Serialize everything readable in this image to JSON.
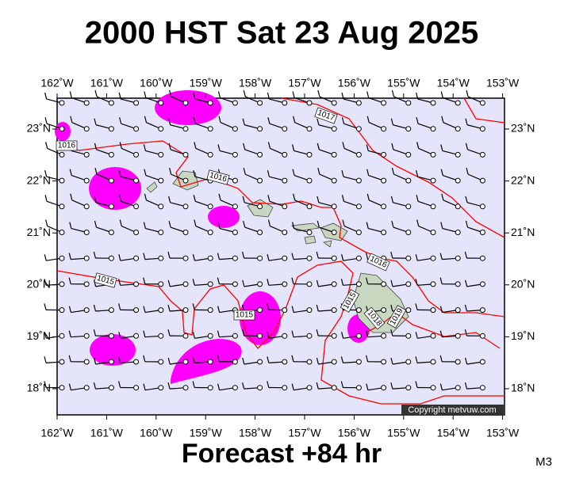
{
  "title": "2000 HST Sat 23 Aug 2025",
  "footer": "Forecast +84 hr",
  "model": "M3",
  "copyright": "Copyright metvuw.com",
  "lon_labels": [
    "162˚W",
    "161˚W",
    "160˚W",
    "159˚W",
    "158˚W",
    "157˚W",
    "156˚W",
    "155˚W",
    "154˚W",
    "153˚W"
  ],
  "lat_labels": [
    "23˚N",
    "22˚N",
    "21˚N",
    "20˚N",
    "19˚N",
    "18˚N"
  ],
  "isobar_labels": [
    "1016",
    "1017",
    "1016",
    "1016",
    "1015",
    "1015",
    "1015",
    "1018",
    "1019"
  ]
}
